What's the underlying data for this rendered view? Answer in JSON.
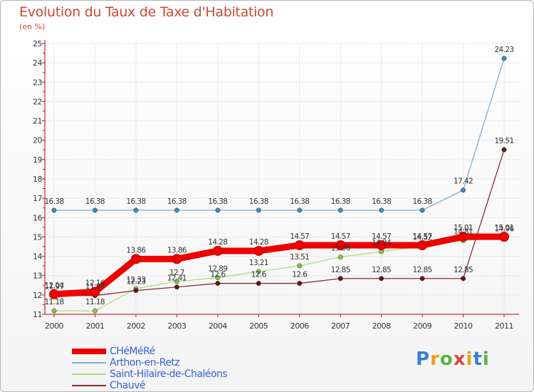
{
  "title": "Evolution du Taux de Taxe d'Habitation",
  "subtitle": "(en %)",
  "logo": {
    "text": "Proxiti",
    "letter_colors": [
      "#3d7fd1",
      "#e8a21e",
      "#5ab04a",
      "#d9484a",
      "#e8a21e",
      "#3d7fd1",
      "#5ab04a"
    ]
  },
  "chart_data": {
    "type": "line",
    "title": "Evolution du Taux de Taxe d'Habitation",
    "ylabel": "(en %)",
    "x": [
      2000,
      2001,
      2002,
      2003,
      2004,
      2005,
      2006,
      2007,
      2008,
      2009,
      2010,
      2011
    ],
    "x_tick_labels": [
      "2000",
      "2001",
      "2002",
      "2003",
      "2004",
      "2005",
      "2006",
      "2007",
      "2008",
      "2009",
      "2010",
      "2011"
    ],
    "ylim": [
      11,
      25
    ],
    "y_ticks": [
      "11",
      "12",
      "13",
      "14",
      "15",
      "16",
      "17",
      "18",
      "19",
      "20",
      "21",
      "22",
      "23",
      "24",
      "25"
    ],
    "grid": true,
    "legend_position": "bottom-left",
    "series": [
      {
        "name": "CHéMéRé",
        "color": "#ee0000",
        "thick": true,
        "values": [
          12.04,
          12.16,
          13.86,
          13.86,
          14.28,
          14.28,
          14.57,
          14.57,
          14.57,
          14.57,
          15.01,
          15.01
        ],
        "labels": [
          "12.04",
          "12.16",
          "13.86",
          "13.86",
          "14.28",
          "14.28",
          "14.57",
          "14.57",
          "14.57",
          "14.57",
          "15.01",
          "15.01"
        ]
      },
      {
        "name": "Arthon-en-Retz",
        "color": "#7aaedb",
        "marker": "#3c88c8",
        "thick": false,
        "values": [
          16.38,
          16.38,
          16.38,
          16.38,
          16.38,
          16.38,
          16.38,
          16.38,
          16.38,
          16.38,
          17.42,
          24.23
        ],
        "labels": [
          "16.38",
          "16.38",
          "16.38",
          "16.38",
          "16.38",
          "16.38",
          "16.38",
          "16.38",
          "16.38",
          "16.38",
          "17.42",
          "24.23"
        ]
      },
      {
        "name": "Saint-Hilaire-de-Chaléons",
        "color": "#a9e07a",
        "marker": "#7cc843",
        "thick": false,
        "values": [
          11.18,
          11.18,
          12.33,
          12.7,
          12.89,
          13.21,
          13.51,
          13.96,
          14.24,
          14.52,
          14.81,
          14.96
        ],
        "labels": [
          "11.18",
          "11.18",
          "12.33",
          "12.7",
          "12.89",
          "13.21",
          "13.51",
          "13.96",
          "14.24",
          "14.52",
          "14.81",
          "14.96"
        ]
      },
      {
        "name": "Chauvé",
        "color": "#8a2c33",
        "marker": "#6a1015",
        "thick": false,
        "values": [
          11.97,
          11.97,
          12.23,
          12.41,
          12.6,
          12.6,
          12.6,
          12.85,
          12.85,
          12.85,
          12.85,
          19.51
        ],
        "labels": [
          "11.97",
          "11.97",
          "12.23",
          "12.41",
          "12.6",
          "12.6",
          "12.6",
          "12.85",
          "12.85",
          "12.85",
          "12.85",
          "19.51"
        ]
      }
    ]
  }
}
